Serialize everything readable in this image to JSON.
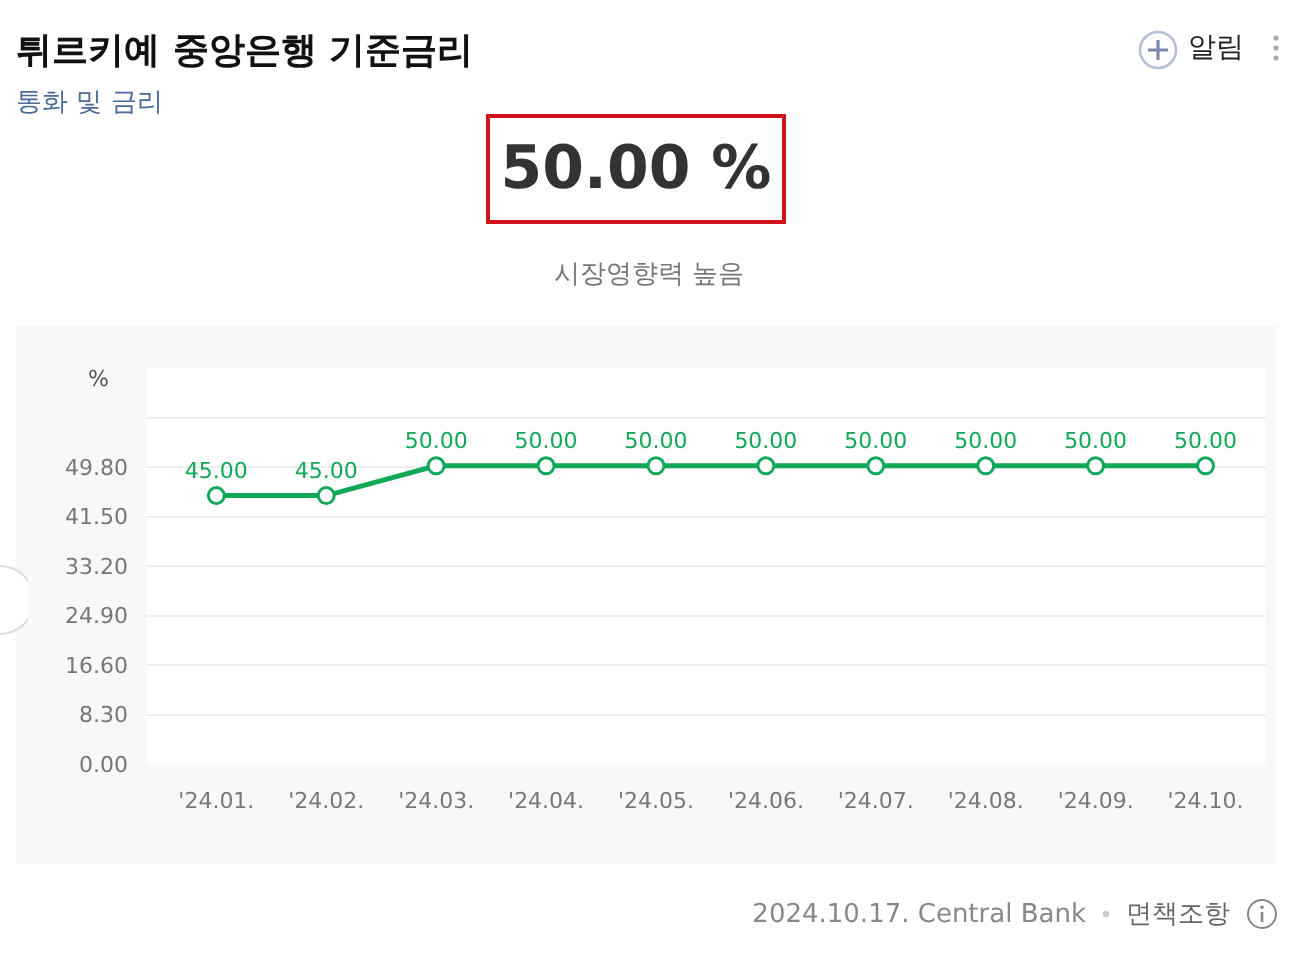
{
  "chart_data": {
    "type": "line",
    "title": "튀르키예 중앙은행 기준금리",
    "subtitle": "통화 및 금리",
    "ylabel": "%",
    "annotations": [
      "알림",
      "50.00 %",
      "시장영향력 높음",
      "2024.10.17. Central Bank",
      "면책조항"
    ],
    "categories": [
      "'24.01.",
      "'24.02.",
      "'24.03.",
      "'24.04.",
      "'24.05.",
      "'24.06.",
      "'24.07.",
      "'24.08.",
      "'24.09.",
      "'24.10."
    ],
    "series": [
      {
        "color": "#12a85a",
        "values": [
          45,
          45,
          50,
          50,
          50,
          50,
          50,
          50,
          50,
          50
        ],
        "value_labels": [
          "45.00",
          "45.00",
          "50.00",
          "50.00",
          "50.00",
          "50.00",
          "50.00",
          "50.00",
          "50.00",
          "50.00"
        ]
      }
    ],
    "ylim": [
      0,
      66.4
    ],
    "yticks": [
      {
        "value": 0,
        "label": "0.00"
      },
      {
        "value": 8.3,
        "label": "8.30"
      },
      {
        "value": 16.6,
        "label": "16.60"
      },
      {
        "value": 24.9,
        "label": "24.90"
      },
      {
        "value": 33.2,
        "label": "33.20"
      },
      {
        "value": 41.5,
        "label": "41.50"
      },
      {
        "value": 49.8,
        "label": "49.80"
      },
      {
        "value": 58.1,
        "label": null
      }
    ],
    "grid": "y",
    "legend": false,
    "marker": "circle",
    "line_style": "solid"
  }
}
